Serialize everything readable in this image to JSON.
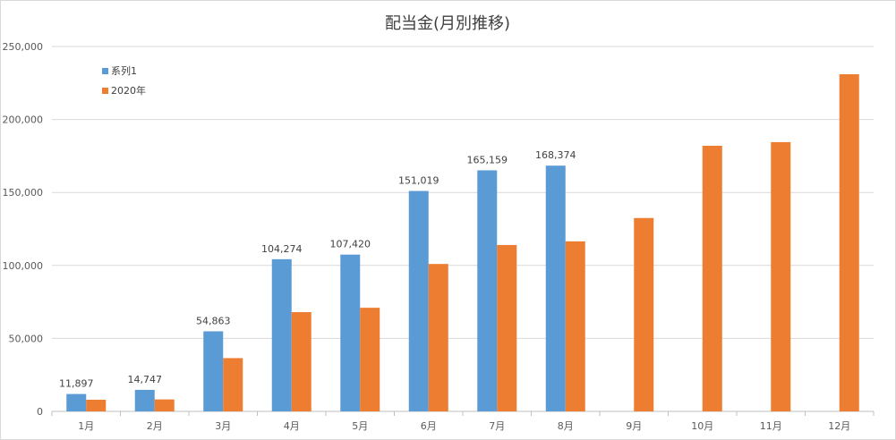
{
  "chart_data": {
    "type": "bar",
    "title": "配当金(月別推移)",
    "categories": [
      "1月",
      "2月",
      "3月",
      "4月",
      "5月",
      "6月",
      "7月",
      "8月",
      "9月",
      "10月",
      "11月",
      "12月"
    ],
    "ylim": [
      0,
      250000
    ],
    "yticks": [
      "0",
      "50,000",
      "100,000",
      "150,000",
      "200,000",
      "250,000"
    ],
    "ytick_values": [
      0,
      50000,
      100000,
      150000,
      200000,
      250000
    ],
    "grid": true,
    "legend_position": "top-left",
    "series": [
      {
        "name": "系列1",
        "color": "#5b9bd5",
        "values": [
          11897,
          14747,
          54863,
          104274,
          107420,
          151019,
          165159,
          168374,
          null,
          null,
          null,
          null
        ],
        "labels": [
          "11,897",
          "14,747",
          "54,863",
          "104,274",
          "107,420",
          "151,019",
          "165,159",
          "168,374",
          "",
          "",
          "",
          ""
        ]
      },
      {
        "name": "2020年",
        "color": "#ed7d31",
        "values": [
          8000,
          8200,
          36500,
          68000,
          71000,
          101000,
          114000,
          116500,
          132500,
          182000,
          184500,
          231000
        ]
      }
    ]
  }
}
